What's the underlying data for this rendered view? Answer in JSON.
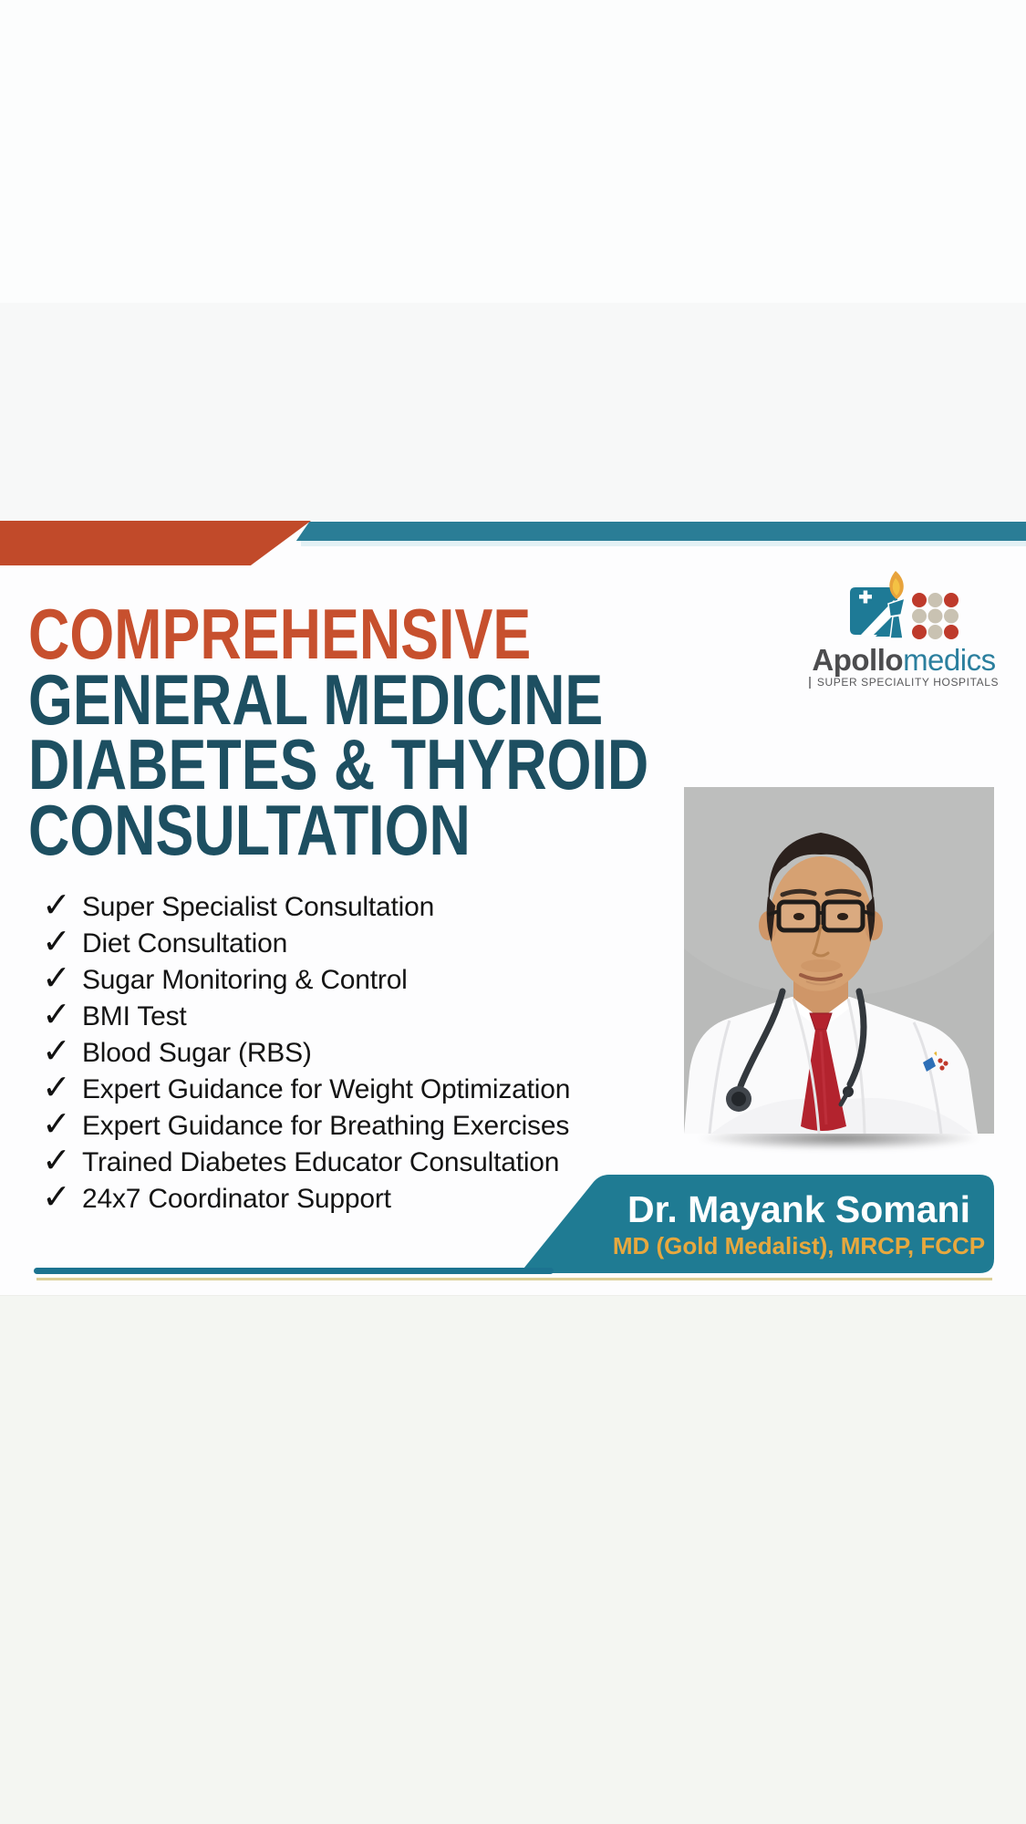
{
  "page": {
    "kind": "hospital consultation flyer",
    "colors": {
      "bg_top": "#fcfdfd",
      "bg_upper": "#f7f8f8",
      "bg_bottom": "#f4f6f2",
      "band_orange": "#c14a2a",
      "band_teal": "#2a7d96",
      "title_accent": "#c7502e",
      "title_main": "#1d4f61",
      "banner_teal": "#1f7b93",
      "credentials_gold": "#e7a83e",
      "rule_teal": "#1c7390",
      "rule_gold": "#dccf96",
      "photo_background_gray": "#b9bab9"
    }
  },
  "logo": {
    "icon": "apollomedics-torch-emblem",
    "brand_bold": "Apollo",
    "brand_light": "medics",
    "tagline": "SUPER SPECIALITY HOSPITALS"
  },
  "title": {
    "lines": [
      "COMPREHENSIVE",
      "GENERAL MEDICINE",
      "DIABETES & THYROID",
      "CONSULTATION"
    ]
  },
  "checklist": {
    "check_glyph": "✓",
    "items": [
      "Super Specialist Consultation",
      "Diet Consultation",
      "Sugar Monitoring & Control",
      "BMI Test",
      "Blood Sugar (RBS)",
      "Expert Guidance for Weight Optimization",
      "Expert Guidance for Breathing Exercises",
      "Trained Diabetes Educator Consultation",
      "24x7 Coordinator Support"
    ]
  },
  "doctor": {
    "portrait": "doctor-photo-portrait",
    "name": "Dr. Mayank Somani",
    "credentials": "MD (Gold Medalist), MRCP, FCCP"
  }
}
